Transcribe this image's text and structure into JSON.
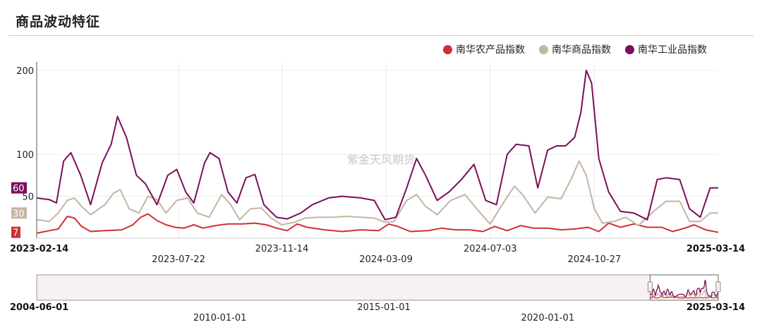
{
  "page_title": "商品波动特征",
  "watermark": "紫金天风期货",
  "colors": {
    "agri": "#d32f2f",
    "commodity": "#c4b5a2",
    "industrial": "#7b0f5a"
  },
  "chart_data": {
    "type": "line",
    "legend_position": "top-right",
    "grid": true,
    "ylim": [
      0,
      210
    ],
    "yticks": [
      {
        "value": 50,
        "label": "50"
      },
      {
        "value": 100,
        "label": "100"
      },
      {
        "value": 200,
        "label": "200"
      }
    ],
    "xlim": [
      "2023-02-14",
      "2025-03-14"
    ],
    "xticks": [
      {
        "date": "2023-02-14",
        "label": "2023-02-14",
        "bold": true
      },
      {
        "date": "2023-07-22",
        "label": "2023-07-22",
        "bold": false
      },
      {
        "date": "2023-11-14",
        "label": "2023-11-14",
        "bold": false
      },
      {
        "date": "2024-03-09",
        "label": "2024-03-09",
        "bold": false
      },
      {
        "date": "2024-07-03",
        "label": "2024-07-03",
        "bold": false
      },
      {
        "date": "2024-10-27",
        "label": "2024-10-27",
        "bold": false
      },
      {
        "date": "2025-03-14",
        "label": "2025-03-14",
        "bold": true
      }
    ],
    "series": [
      {
        "name": "南华农产品指数",
        "color_key": "agri",
        "last_label": "7",
        "points": [
          [
            "2023-02-14",
            6
          ],
          [
            "2023-02-28",
            9
          ],
          [
            "2023-03-10",
            11
          ],
          [
            "2023-03-20",
            26
          ],
          [
            "2023-03-28",
            24
          ],
          [
            "2023-04-05",
            14
          ],
          [
            "2023-04-15",
            8
          ],
          [
            "2023-05-01",
            9
          ],
          [
            "2023-05-20",
            10
          ],
          [
            "2023-06-01",
            16
          ],
          [
            "2023-06-10",
            25
          ],
          [
            "2023-06-18",
            29
          ],
          [
            "2023-06-28",
            21
          ],
          [
            "2023-07-08",
            16
          ],
          [
            "2023-07-18",
            13
          ],
          [
            "2023-07-28",
            12
          ],
          [
            "2023-08-08",
            16
          ],
          [
            "2023-08-18",
            12
          ],
          [
            "2023-09-01",
            15
          ],
          [
            "2023-09-15",
            17
          ],
          [
            "2023-10-01",
            17
          ],
          [
            "2023-10-15",
            18
          ],
          [
            "2023-10-28",
            16
          ],
          [
            "2023-11-08",
            12
          ],
          [
            "2023-11-20",
            9
          ],
          [
            "2023-12-01",
            17
          ],
          [
            "2023-12-12",
            13
          ],
          [
            "2024-01-01",
            10
          ],
          [
            "2024-01-20",
            8
          ],
          [
            "2024-02-10",
            10
          ],
          [
            "2024-03-01",
            9
          ],
          [
            "2024-03-12",
            17
          ],
          [
            "2024-03-22",
            14
          ],
          [
            "2024-04-05",
            8
          ],
          [
            "2024-04-25",
            9
          ],
          [
            "2024-05-10",
            12
          ],
          [
            "2024-05-25",
            10
          ],
          [
            "2024-06-10",
            10
          ],
          [
            "2024-06-25",
            8
          ],
          [
            "2024-07-08",
            14
          ],
          [
            "2024-07-22",
            9
          ],
          [
            "2024-08-06",
            15
          ],
          [
            "2024-08-20",
            12
          ],
          [
            "2024-09-05",
            12
          ],
          [
            "2024-09-20",
            10
          ],
          [
            "2024-10-05",
            11
          ],
          [
            "2024-10-20",
            13
          ],
          [
            "2024-11-01",
            8
          ],
          [
            "2024-11-12",
            18
          ],
          [
            "2024-11-25",
            13
          ],
          [
            "2024-12-10",
            17
          ],
          [
            "2024-12-25",
            13
          ],
          [
            "2025-01-10",
            13
          ],
          [
            "2025-01-22",
            8
          ],
          [
            "2025-02-05",
            12
          ],
          [
            "2025-02-15",
            16
          ],
          [
            "2025-02-28",
            10
          ],
          [
            "2025-03-14",
            7
          ]
        ]
      },
      {
        "name": "南华商品指数",
        "color_key": "commodity",
        "last_label": "30",
        "points": [
          [
            "2023-02-14",
            22
          ],
          [
            "2023-02-28",
            20
          ],
          [
            "2023-03-10",
            30
          ],
          [
            "2023-03-20",
            45
          ],
          [
            "2023-03-28",
            48
          ],
          [
            "2023-04-05",
            38
          ],
          [
            "2023-04-15",
            28
          ],
          [
            "2023-05-01",
            40
          ],
          [
            "2023-05-10",
            53
          ],
          [
            "2023-05-18",
            58
          ],
          [
            "2023-05-28",
            35
          ],
          [
            "2023-06-08",
            30
          ],
          [
            "2023-06-18",
            50
          ],
          [
            "2023-06-28",
            46
          ],
          [
            "2023-07-08",
            30
          ],
          [
            "2023-07-20",
            45
          ],
          [
            "2023-08-01",
            48
          ],
          [
            "2023-08-12",
            30
          ],
          [
            "2023-08-25",
            25
          ],
          [
            "2023-09-08",
            52
          ],
          [
            "2023-09-18",
            40
          ],
          [
            "2023-09-28",
            22
          ],
          [
            "2023-10-10",
            35
          ],
          [
            "2023-10-22",
            36
          ],
          [
            "2023-11-02",
            24
          ],
          [
            "2023-11-14",
            16
          ],
          [
            "2023-11-28",
            19
          ],
          [
            "2023-12-10",
            24
          ],
          [
            "2023-12-25",
            25
          ],
          [
            "2024-01-10",
            25
          ],
          [
            "2024-01-25",
            26
          ],
          [
            "2024-02-10",
            25
          ],
          [
            "2024-02-25",
            24
          ],
          [
            "2024-03-08",
            19
          ],
          [
            "2024-03-18",
            20
          ],
          [
            "2024-04-01",
            45
          ],
          [
            "2024-04-12",
            52
          ],
          [
            "2024-04-22",
            38
          ],
          [
            "2024-05-05",
            28
          ],
          [
            "2024-05-20",
            45
          ],
          [
            "2024-06-05",
            52
          ],
          [
            "2024-06-18",
            35
          ],
          [
            "2024-07-03",
            17
          ],
          [
            "2024-07-20",
            46
          ],
          [
            "2024-07-30",
            62
          ],
          [
            "2024-08-08",
            52
          ],
          [
            "2024-08-22",
            30
          ],
          [
            "2024-09-05",
            49
          ],
          [
            "2024-09-20",
            47
          ],
          [
            "2024-10-01",
            70
          ],
          [
            "2024-10-10",
            92
          ],
          [
            "2024-10-18",
            75
          ],
          [
            "2024-10-27",
            35
          ],
          [
            "2024-11-05",
            18
          ],
          [
            "2024-11-18",
            20
          ],
          [
            "2024-12-01",
            25
          ],
          [
            "2024-12-15",
            15
          ],
          [
            "2025-01-01",
            32
          ],
          [
            "2025-01-15",
            44
          ],
          [
            "2025-01-30",
            44
          ],
          [
            "2025-02-10",
            20
          ],
          [
            "2025-02-22",
            20
          ],
          [
            "2025-03-05",
            30
          ],
          [
            "2025-03-14",
            30
          ]
        ]
      },
      {
        "name": "南华工业品指数",
        "color_key": "industrial",
        "last_label": "60",
        "points": [
          [
            "2023-02-14",
            48
          ],
          [
            "2023-02-28",
            46
          ],
          [
            "2023-03-08",
            42
          ],
          [
            "2023-03-16",
            92
          ],
          [
            "2023-03-24",
            102
          ],
          [
            "2023-04-04",
            75
          ],
          [
            "2023-04-15",
            40
          ],
          [
            "2023-04-28",
            90
          ],
          [
            "2023-05-08",
            112
          ],
          [
            "2023-05-15",
            145
          ],
          [
            "2023-05-25",
            120
          ],
          [
            "2023-06-05",
            75
          ],
          [
            "2023-06-15",
            65
          ],
          [
            "2023-06-28",
            40
          ],
          [
            "2023-07-10",
            75
          ],
          [
            "2023-07-20",
            82
          ],
          [
            "2023-07-30",
            55
          ],
          [
            "2023-08-08",
            42
          ],
          [
            "2023-08-20",
            90
          ],
          [
            "2023-08-26",
            102
          ],
          [
            "2023-09-05",
            95
          ],
          [
            "2023-09-15",
            55
          ],
          [
            "2023-09-25",
            42
          ],
          [
            "2023-10-05",
            72
          ],
          [
            "2023-10-15",
            76
          ],
          [
            "2023-10-25",
            40
          ],
          [
            "2023-11-08",
            25
          ],
          [
            "2023-11-20",
            23
          ],
          [
            "2023-12-05",
            30
          ],
          [
            "2023-12-18",
            40
          ],
          [
            "2024-01-05",
            48
          ],
          [
            "2024-01-20",
            50
          ],
          [
            "2024-02-10",
            48
          ],
          [
            "2024-02-25",
            45
          ],
          [
            "2024-03-08",
            22
          ],
          [
            "2024-03-20",
            25
          ],
          [
            "2024-04-01",
            60
          ],
          [
            "2024-04-12",
            95
          ],
          [
            "2024-04-22",
            75
          ],
          [
            "2024-05-05",
            45
          ],
          [
            "2024-05-18",
            55
          ],
          [
            "2024-06-01",
            70
          ],
          [
            "2024-06-15",
            88
          ],
          [
            "2024-06-28",
            45
          ],
          [
            "2024-07-10",
            40
          ],
          [
            "2024-07-22",
            100
          ],
          [
            "2024-08-01",
            112
          ],
          [
            "2024-08-15",
            110
          ],
          [
            "2024-08-25",
            60
          ],
          [
            "2024-09-05",
            105
          ],
          [
            "2024-09-15",
            110
          ],
          [
            "2024-09-25",
            110
          ],
          [
            "2024-10-05",
            120
          ],
          [
            "2024-10-12",
            150
          ],
          [
            "2024-10-18",
            200
          ],
          [
            "2024-10-24",
            185
          ],
          [
            "2024-11-01",
            95
          ],
          [
            "2024-11-12",
            55
          ],
          [
            "2024-11-25",
            32
          ],
          [
            "2024-12-10",
            30
          ],
          [
            "2024-12-25",
            22
          ],
          [
            "2025-01-05",
            70
          ],
          [
            "2025-01-15",
            72
          ],
          [
            "2025-01-30",
            70
          ],
          [
            "2025-02-10",
            35
          ],
          [
            "2025-02-22",
            25
          ],
          [
            "2025-03-05",
            60
          ],
          [
            "2025-03-14",
            60
          ]
        ]
      }
    ],
    "navigator": {
      "range": [
        "2004-06-01",
        "2025-03-14"
      ],
      "selected": [
        "2023-02-14",
        "2025-03-14"
      ],
      "ticks": [
        {
          "date": "2004-06-01",
          "label": "2004-06-01",
          "bold": true
        },
        {
          "date": "2010-01-01",
          "label": "2010-01-01",
          "bold": false
        },
        {
          "date": "2015-01-01",
          "label": "2015-01-01",
          "bold": false
        },
        {
          "date": "2020-01-01",
          "label": "2020-01-01",
          "bold": false
        },
        {
          "date": "2025-03-14",
          "label": "2025-03-14",
          "bold": true
        }
      ]
    }
  }
}
